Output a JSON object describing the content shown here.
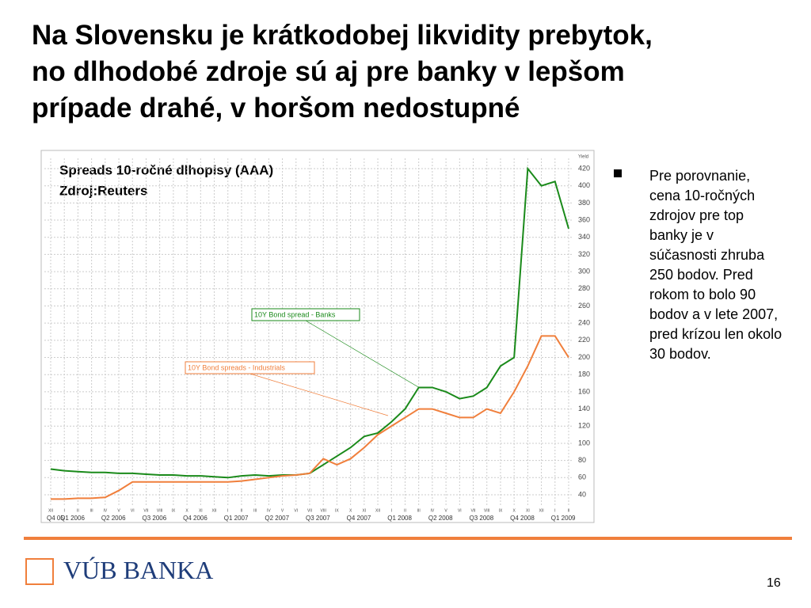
{
  "slide_title": [
    "Na Slovensku je krátkodobej likvidity prebytok,",
    "no dlhodobé zdroje sú aj pre banky v lepšom",
    "prípade drahé, v horšom nedostupné"
  ],
  "bullet": "Pre porovnanie, cena 10-ročných zdrojov pre top banky je v súčasnosti zhruba 250 bodov. Pred rokom to bolo 90 bodov a v lete 2007, pred krízou len okolo 30 bodov.",
  "logo": "VÚB BANKA",
  "page_number": "16",
  "chart_data": {
    "type": "line",
    "title": "Spreads 10-ročné dlhopisy (AAA)",
    "subtitle": "Zdroj:Reuters",
    "y_axis_label": "Yield",
    "categories": [
      "XII",
      "I",
      "II",
      "III",
      "IV",
      "V",
      "VI",
      "VII",
      "VIII",
      "IX",
      "X",
      "XI",
      "XII",
      "I",
      "II",
      "III",
      "IV",
      "V",
      "VI",
      "VII",
      "VIII",
      "IX",
      "X",
      "XI",
      "XII",
      "I",
      "II",
      "III",
      "IV",
      "V",
      "VI",
      "VII",
      "VIII",
      "IX",
      "X",
      "XI",
      "XII",
      "I",
      "II"
    ],
    "quarters": [
      "Q4 05",
      "Q1 2006",
      "Q2 2006",
      "Q3 2006",
      "Q4 2006",
      "Q1 2007",
      "Q2 2007",
      "Q3 2007",
      "Q4 2007",
      "Q1 2008",
      "Q2 2008",
      "Q3 2008",
      "Q4 2008",
      "Q1 2009"
    ],
    "series": [
      {
        "name": "10Y Bond spread - Banks",
        "color": "#1a8a1a",
        "values": [
          70,
          68,
          67,
          66,
          66,
          65,
          65,
          64,
          63,
          63,
          62,
          62,
          61,
          60,
          62,
          63,
          62,
          63,
          63,
          65,
          75,
          85,
          95,
          108,
          112,
          125,
          140,
          165,
          165,
          160,
          152,
          155,
          165,
          190,
          200,
          420,
          400,
          405,
          350
        ]
      },
      {
        "name": "10Y Bond spreads - Industrials",
        "color": "#f07f3c",
        "values": [
          35,
          35,
          36,
          36,
          37,
          45,
          55,
          55,
          55,
          55,
          55,
          55,
          55,
          55,
          56,
          58,
          60,
          62,
          63,
          65,
          82,
          75,
          82,
          95,
          110,
          120,
          130,
          140,
          140,
          135,
          130,
          130,
          140,
          135,
          160,
          190,
          225,
          225,
          200
        ]
      }
    ],
    "ylim": [
      28,
      432
    ],
    "yticks": [
      40,
      60,
      80,
      100,
      120,
      140,
      160,
      180,
      200,
      220,
      240,
      260,
      280,
      300,
      320,
      340,
      360,
      380,
      400,
      420
    ],
    "grid": true
  }
}
